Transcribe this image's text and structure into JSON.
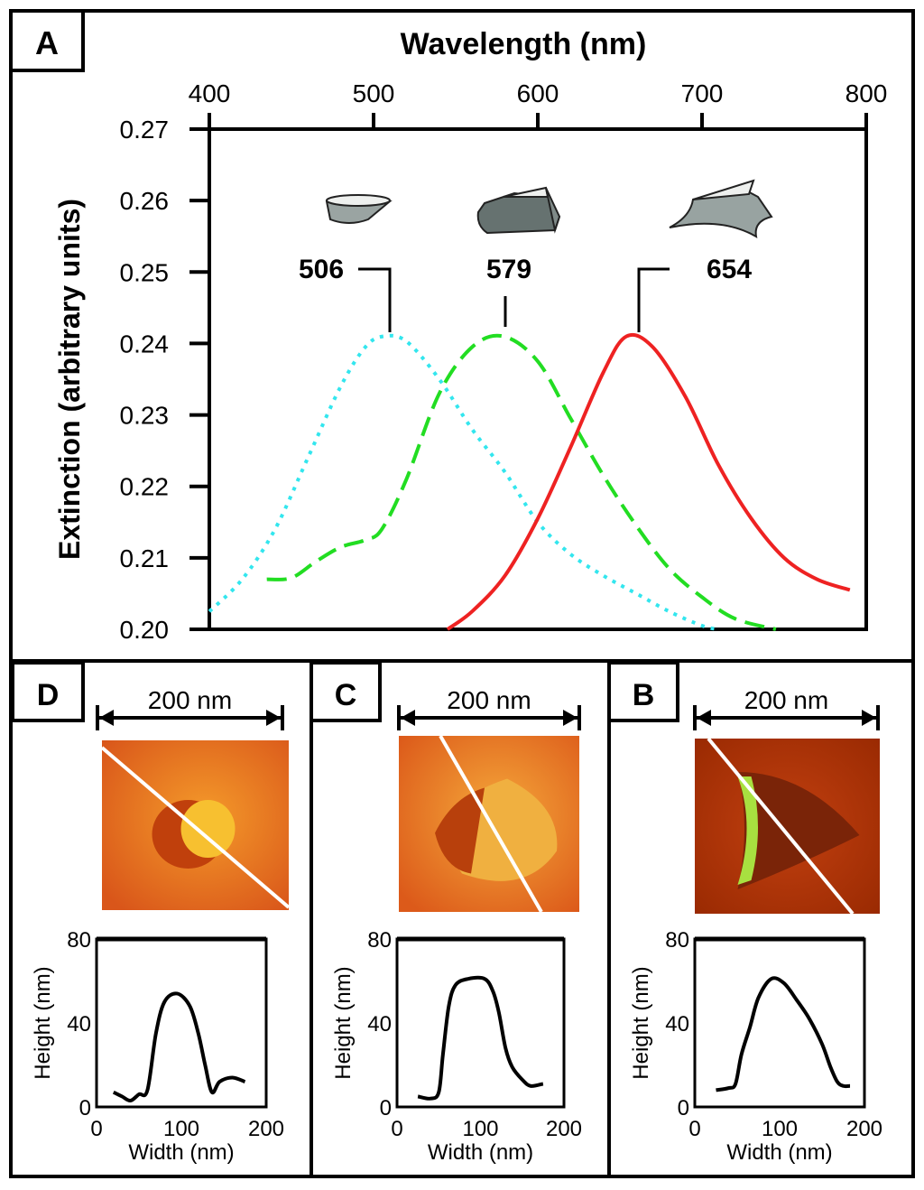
{
  "panels": {
    "A": "A",
    "B": "B",
    "C": "C",
    "D": "D"
  },
  "scale_bar_label": "200 nm",
  "colors": {
    "cyan": "#33e6ee",
    "green": "#22dd22",
    "red": "#ee2222",
    "afm_orange": "#e8701a",
    "afm_dark_red": "#a02a00"
  },
  "chart_data": [
    {
      "type": "line",
      "panel": "A",
      "xlabel": "Wavelength (nm)",
      "ylabel": "Extinction (arbitrary units)",
      "xlim": [
        400,
        800
      ],
      "ylim": [
        0.2,
        0.27
      ],
      "xticks": [
        "400",
        "500",
        "600",
        "700",
        "800"
      ],
      "yticks": [
        "0.20",
        "0.21",
        "0.22",
        "0.23",
        "0.24",
        "0.25",
        "0.26",
        "0.27"
      ],
      "x_axis_position": "top",
      "grid": false,
      "annotations": [
        "506",
        "579",
        "654"
      ],
      "series": [
        {
          "style": "dotted",
          "color": "#33e6ee",
          "shape": "disk",
          "peak": 506,
          "x": [
            400,
            420,
            440,
            460,
            480,
            495,
            506,
            520,
            540,
            560,
            580,
            600,
            620,
            640,
            660,
            680,
            700,
            710
          ],
          "y": [
            0.2025,
            0.207,
            0.214,
            0.224,
            0.234,
            0.2395,
            0.241,
            0.2403,
            0.235,
            0.228,
            0.222,
            0.215,
            0.2105,
            0.2075,
            0.205,
            0.2025,
            0.2005,
            0.2
          ]
        },
        {
          "style": "dashed",
          "color": "#22dd22",
          "shape": "truncated-triangle",
          "peak": 579,
          "x": [
            435,
            450,
            465,
            480,
            495,
            505,
            520,
            540,
            560,
            579,
            600,
            620,
            640,
            660,
            680,
            700,
            720,
            745
          ],
          "y": [
            0.207,
            0.2072,
            0.2095,
            0.2115,
            0.2125,
            0.214,
            0.221,
            0.233,
            0.2395,
            0.241,
            0.2375,
            0.2295,
            0.2215,
            0.2145,
            0.2085,
            0.2045,
            0.2015,
            0.2
          ]
        },
        {
          "style": "solid",
          "color": "#ee2222",
          "shape": "concave-triangle",
          "peak": 654,
          "x": [
            545,
            560,
            580,
            600,
            620,
            640,
            654,
            670,
            690,
            710,
            730,
            750,
            770,
            790
          ],
          "y": [
            0.2,
            0.2025,
            0.2075,
            0.2155,
            0.2255,
            0.236,
            0.241,
            0.2395,
            0.2325,
            0.223,
            0.2155,
            0.21,
            0.207,
            0.2055
          ]
        }
      ]
    },
    {
      "type": "line",
      "panel": "D",
      "xlabel": "Width (nm)",
      "ylabel": "Height (nm)",
      "xlim": [
        0,
        200
      ],
      "ylim": [
        0,
        80
      ],
      "xticks": [
        "0",
        "100",
        "200"
      ],
      "yticks": [
        "0",
        "40",
        "80"
      ],
      "x": [
        20,
        30,
        40,
        50,
        60,
        70,
        80,
        95,
        110,
        120,
        128,
        136,
        145,
        160,
        175
      ],
      "y": [
        7,
        5,
        3,
        6,
        8,
        35,
        50,
        54,
        48,
        35,
        20,
        7,
        12,
        14,
        12
      ]
    },
    {
      "type": "line",
      "panel": "C",
      "xlabel": "Width (nm)",
      "ylabel": "Height (nm)",
      "xlim": [
        0,
        200
      ],
      "ylim": [
        0,
        80
      ],
      "xticks": [
        "0",
        "100",
        "200"
      ],
      "yticks": [
        "0",
        "40",
        "80"
      ],
      "x": [
        25,
        40,
        50,
        55,
        62,
        70,
        85,
        105,
        115,
        122,
        130,
        138,
        150,
        160,
        175
      ],
      "y": [
        5,
        4,
        7,
        25,
        48,
        58,
        61,
        61,
        55,
        45,
        28,
        19,
        13,
        10,
        11
      ]
    },
    {
      "type": "line",
      "panel": "B",
      "xlabel": "Width (nm)",
      "ylabel": "Height (nm)",
      "xlim": [
        0,
        200
      ],
      "ylim": [
        0,
        80
      ],
      "xticks": [
        "0",
        "100",
        "200"
      ],
      "yticks": [
        "0",
        "40",
        "80"
      ],
      "x": [
        25,
        40,
        48,
        55,
        65,
        75,
        90,
        105,
        120,
        135,
        150,
        160,
        168,
        175,
        183
      ],
      "y": [
        8,
        9,
        11,
        25,
        38,
        52,
        61,
        59,
        51,
        42,
        30,
        19,
        12,
        10,
        10
      ]
    }
  ]
}
